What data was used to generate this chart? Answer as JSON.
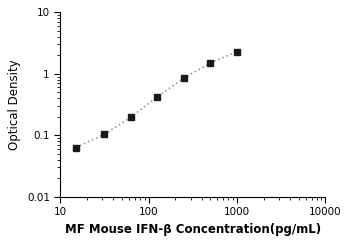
{
  "x_data": [
    15,
    31.25,
    62.5,
    125,
    250,
    500,
    1000
  ],
  "y_data": [
    0.063,
    0.103,
    0.195,
    0.42,
    0.85,
    1.5,
    2.3
  ],
  "xlabel": "MF Mouse IFN-β Concentration(pg/mL)",
  "ylabel": "Optical Density",
  "xlim": [
    10,
    10000
  ],
  "ylim": [
    0.01,
    10
  ],
  "xticks": [
    10,
    100,
    1000,
    10000
  ],
  "yticks": [
    0.01,
    0.1,
    1,
    10
  ],
  "ytick_labels": [
    "0.01",
    "0.1",
    "1",
    "10"
  ],
  "xtick_labels": [
    "10",
    "100",
    "1000",
    "10000"
  ],
  "marker": "s",
  "marker_color": "#1a1a1a",
  "marker_size": 4.5,
  "line_color": "#999999",
  "line_style": ":",
  "line_width": 1.2,
  "xlabel_fontsize": 8.5,
  "ylabel_fontsize": 8.5,
  "tick_fontsize": 7.5,
  "background_color": "#ffffff"
}
